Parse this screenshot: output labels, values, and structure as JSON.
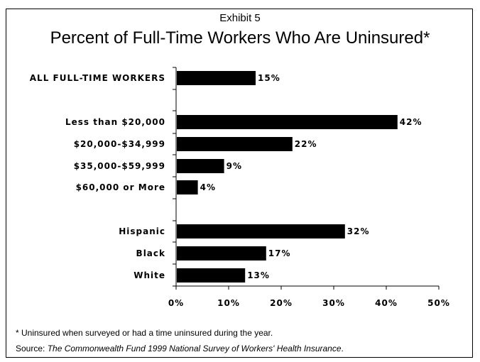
{
  "exhibit_label": "Exhibit 5",
  "chart_data": {
    "type": "bar",
    "orientation": "horizontal",
    "title": "Percent of Full-Time Workers Who Are Uninsured*",
    "categories": [
      "ALL FULL-TIME WORKERS",
      "Less than $20,000",
      "$20,000-$34,999",
      "$35,000-$59,999",
      "$60,000 or More",
      "Hispanic",
      "Black",
      "White"
    ],
    "groups": [
      [
        0
      ],
      [
        1,
        2,
        3,
        4
      ],
      [
        5,
        6,
        7
      ]
    ],
    "values": [
      15,
      42,
      22,
      9,
      4,
      32,
      17,
      13
    ],
    "value_labels": [
      "15%",
      "42%",
      "22%",
      "9%",
      "4%",
      "32%",
      "17%",
      "13%"
    ],
    "xlim": [
      0,
      50
    ],
    "xticks": [
      0,
      10,
      20,
      30,
      40,
      50
    ],
    "xtick_labels": [
      "0%",
      "10%",
      "20%",
      "30%",
      "40%",
      "50%"
    ],
    "grid": false,
    "bar_color": "#000000"
  },
  "footnote": "* Uninsured when surveyed or had a time uninsured during the year.",
  "source": {
    "prefix": "Source: ",
    "title": "The Commonwealth Fund 1999 National Survey of Workers' Health Insurance",
    "suffix": "."
  }
}
